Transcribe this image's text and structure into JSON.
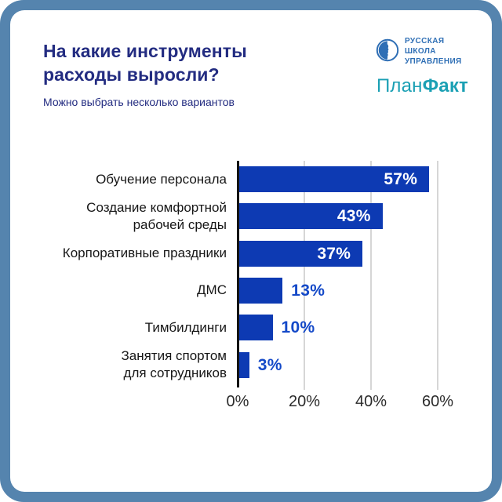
{
  "header": {
    "title": "На какие инструменты расходы выросли?",
    "subtitle": "Можно выбрать несколько вариантов"
  },
  "logos": {
    "rsu": {
      "name": "russian-school-of-management",
      "lines": [
        "РУССКАЯ",
        "ШКОЛА",
        "УПРАВЛЕНИЯ"
      ]
    },
    "planfact": {
      "part1": "План",
      "part2": "Факт"
    }
  },
  "colors": {
    "frame": "#5584ae",
    "title": "#232c81",
    "bar": "#0d3ab3",
    "value_outside": "#1449c8",
    "rsu_blue": "#2f6fb5",
    "planfact_teal": "#1ba0b4",
    "axis": "#141414",
    "gridline": "#d6d6d6"
  },
  "chart_data": {
    "type": "bar",
    "orientation": "horizontal",
    "title": "На какие инструменты расходы выросли?",
    "subtitle": "Можно выбрать несколько вариантов",
    "categories": [
      "Обучение персонала",
      "Создание комфортной\nрабочей среды",
      "Корпоративные праздники",
      "ДМС",
      "Тимбилдинги",
      "Занятия спортом\nдля сотрудников"
    ],
    "values": [
      57,
      43,
      37,
      13,
      10,
      3
    ],
    "value_labels": [
      "57%",
      "43%",
      "37%",
      "13%",
      "10%",
      "3%"
    ],
    "xlabel": "",
    "ylabel": "",
    "xlim": [
      0,
      63
    ],
    "x_ticks": [
      "0%",
      "20%",
      "40%",
      "60%"
    ],
    "x_tick_values": [
      0,
      20,
      40,
      60
    ],
    "grid": "vertical",
    "legend": "none",
    "inside_label_threshold": 20
  }
}
